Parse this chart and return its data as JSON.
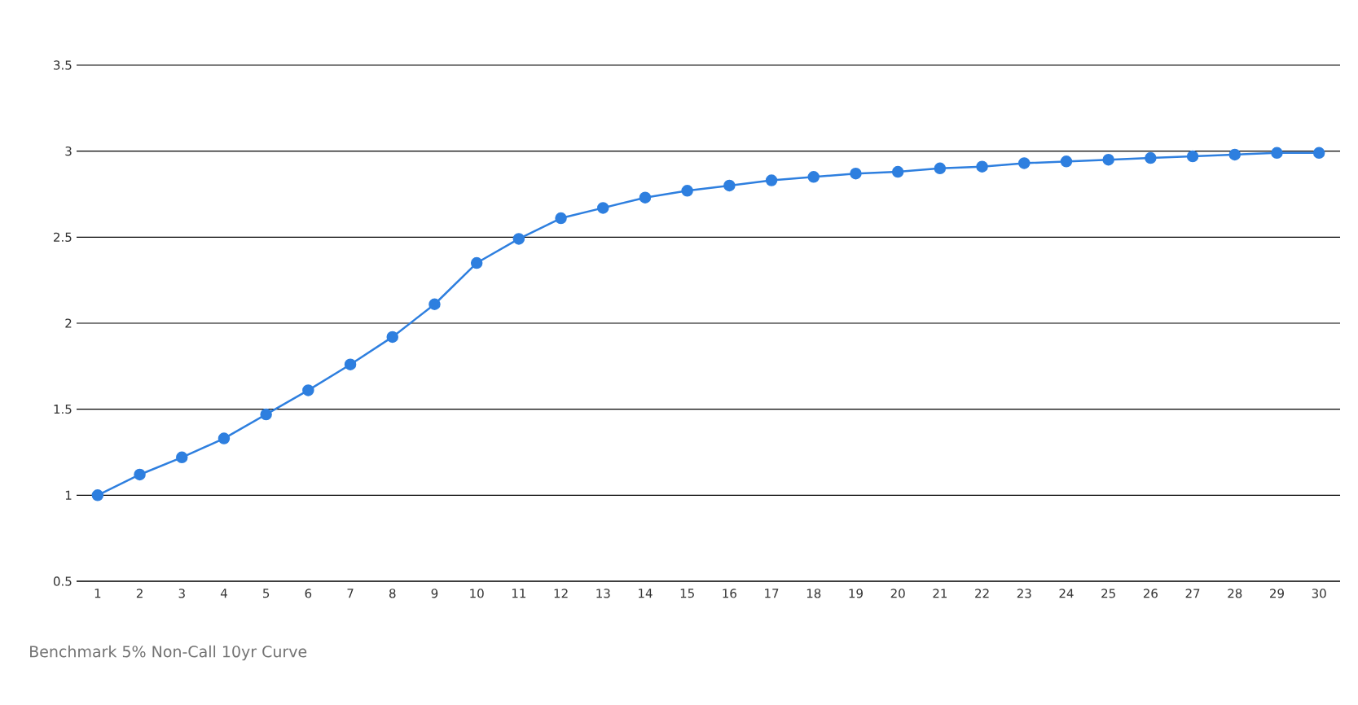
{
  "chart_data": {
    "type": "line",
    "categories": [
      "1",
      "2",
      "3",
      "4",
      "5",
      "6",
      "7",
      "8",
      "9",
      "10",
      "11",
      "12",
      "13",
      "14",
      "15",
      "16",
      "17",
      "18",
      "19",
      "20",
      "21",
      "22",
      "23",
      "24",
      "25",
      "26",
      "27",
      "28",
      "29",
      "30"
    ],
    "values": [
      1.0,
      1.12,
      1.22,
      1.33,
      1.47,
      1.61,
      1.76,
      1.92,
      2.11,
      2.35,
      2.49,
      2.61,
      2.67,
      2.73,
      2.77,
      2.8,
      2.83,
      2.85,
      2.87,
      2.88,
      2.9,
      2.91,
      2.93,
      2.94,
      2.95,
      2.96,
      2.97,
      2.98,
      2.99,
      2.99
    ],
    "color": "#2e7fdf",
    "ylim": [
      0.5,
      3.5
    ],
    "yticks": [
      0.5,
      1,
      1.5,
      2,
      2.5,
      3,
      3.5
    ],
    "grid": "y",
    "marker": "circle",
    "line_style": "solid",
    "annotations": [
      "Benchmark 5% Non-Call 10yr Curve"
    ]
  }
}
